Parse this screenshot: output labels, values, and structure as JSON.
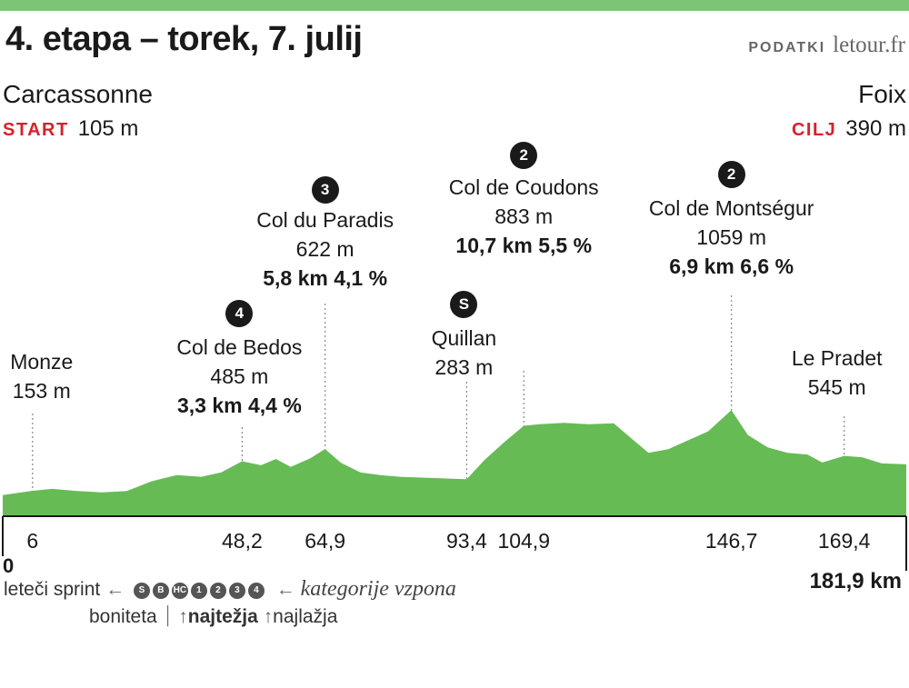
{
  "title": "4. etapa  – torek, 7. julij",
  "source": {
    "label": "PODATKI",
    "site": "letour.fr"
  },
  "start": {
    "city": "Carcassonne",
    "tag": "START",
    "elevation": "105 m"
  },
  "finish": {
    "city": "Foix",
    "tag": "CILJ",
    "elevation": "390 m"
  },
  "colors": {
    "profile_fill": "#66bb55",
    "accent_bar": "#7cc576",
    "start_tag": "#d8202c"
  },
  "chart_data": {
    "type": "area",
    "xlim": [
      0,
      181.9
    ],
    "x": [
      0,
      6,
      10,
      15,
      20,
      25,
      30,
      35,
      40,
      44,
      48.2,
      52,
      55,
      58,
      62,
      64.9,
      68,
      72,
      76,
      80,
      85,
      90,
      93.4,
      97,
      101,
      104.9,
      108,
      113,
      118,
      123,
      127,
      130,
      134,
      138,
      142,
      146.7,
      150,
      154,
      158,
      162,
      165,
      169.4,
      173,
      177,
      181.9
    ],
    "elevation_m": [
      105,
      153,
      175,
      150,
      135,
      150,
      260,
      330,
      310,
      360,
      485,
      440,
      510,
      420,
      520,
      622,
      470,
      360,
      330,
      310,
      300,
      290,
      283,
      500,
      700,
      883,
      900,
      915,
      900,
      910,
      720,
      580,
      620,
      720,
      820,
      1059,
      780,
      640,
      580,
      560,
      470,
      545,
      530,
      460,
      450
    ],
    "km_ticks": [
      {
        "km": 6,
        "label": "6"
      },
      {
        "km": 48.2,
        "label": "48,2"
      },
      {
        "km": 64.9,
        "label": "64,9"
      },
      {
        "km": 93.4,
        "label": "93,4"
      },
      {
        "km": 104.9,
        "label": "104,9"
      },
      {
        "km": 146.7,
        "label": "146,7"
      },
      {
        "km": 169.4,
        "label": "169,4"
      }
    ],
    "start_km_label": "0",
    "end_km_label": "181,9 km",
    "points": [
      {
        "km": 6,
        "name": "Monze",
        "elevation": "153 m"
      },
      {
        "km": 48.2,
        "name": "Col de Bedos",
        "elevation": "485 m",
        "stat": "3,3 km 4,4 %",
        "category": "4"
      },
      {
        "km": 64.9,
        "name": "Col du Paradis",
        "elevation": "622 m",
        "stat": "5,8 km 4,1 %",
        "category": "3"
      },
      {
        "km": 93.4,
        "name": "Quillan",
        "elevation": "283 m",
        "category": "S"
      },
      {
        "km": 104.9,
        "name": "Col de Coudons",
        "elevation": "883 m",
        "stat": "10,7 km 5,5 %",
        "category": "2"
      },
      {
        "km": 146.7,
        "name": "Col de Montségur",
        "elevation": "1059 m",
        "stat": "6,9 km 6,6 %",
        "category": "2"
      },
      {
        "km": 169.4,
        "name": "Le Pradet",
        "elevation": "545 m"
      }
    ]
  },
  "legend": {
    "sprint": "leteči sprint",
    "climbs": "kategorije vzpona",
    "bonus": "boniteta",
    "hardest": "najtežja",
    "easiest": "najlažja",
    "markers": [
      "S",
      "B",
      "HC",
      "1",
      "2",
      "3",
      "4"
    ]
  }
}
